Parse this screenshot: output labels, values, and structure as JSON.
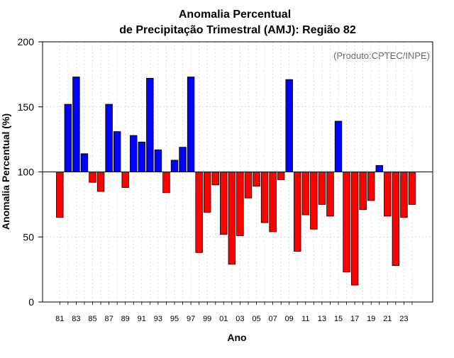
{
  "chart_data": {
    "type": "bar",
    "title": "Anomalia Percentual",
    "subtitle": "de Precipitação Trimestral (AMJ): Região 82",
    "xlabel": "Ano",
    "ylabel": "Anomalia Percentual (%)",
    "credit": "(Produto:CPTEC/INPE)",
    "ylim": [
      0,
      200
    ],
    "yticks": [
      0,
      50,
      100,
      150,
      200
    ],
    "baseline": 100,
    "grid": true,
    "colors": {
      "above": "#0000ff",
      "below": "#ff0000",
      "baseline": "#000000"
    },
    "categories": [
      "1981",
      "1982",
      "1983",
      "1984",
      "1985",
      "1986",
      "1987",
      "1988",
      "1989",
      "1990",
      "1991",
      "1992",
      "1993",
      "1994",
      "1995",
      "1996",
      "1997",
      "1998",
      "1999",
      "2000",
      "2001",
      "2002",
      "2003",
      "2004",
      "2005",
      "2006",
      "2007",
      "2008",
      "2009",
      "2010",
      "2011",
      "2012",
      "2013",
      "2014",
      "2015",
      "2016",
      "2017",
      "2018",
      "2019",
      "2020",
      "2021",
      "2022",
      "2023",
      "2024"
    ],
    "values": [
      65,
      152,
      173,
      114,
      92,
      85,
      152,
      131,
      88,
      128,
      123,
      172,
      117,
      84,
      109,
      119,
      173,
      38,
      69,
      90,
      52,
      29,
      51,
      80,
      89,
      61,
      54,
      94,
      171,
      39,
      67,
      56,
      75,
      66,
      139,
      23,
      13,
      71,
      78,
      105,
      66,
      28,
      65,
      75
    ],
    "xtick_labels": [
      "81",
      "83",
      "85",
      "87",
      "89",
      "91",
      "93",
      "95",
      "97",
      "99",
      "01",
      "03",
      "05",
      "07",
      "09",
      "11",
      "13",
      "15",
      "17",
      "19",
      "21",
      "23"
    ]
  }
}
